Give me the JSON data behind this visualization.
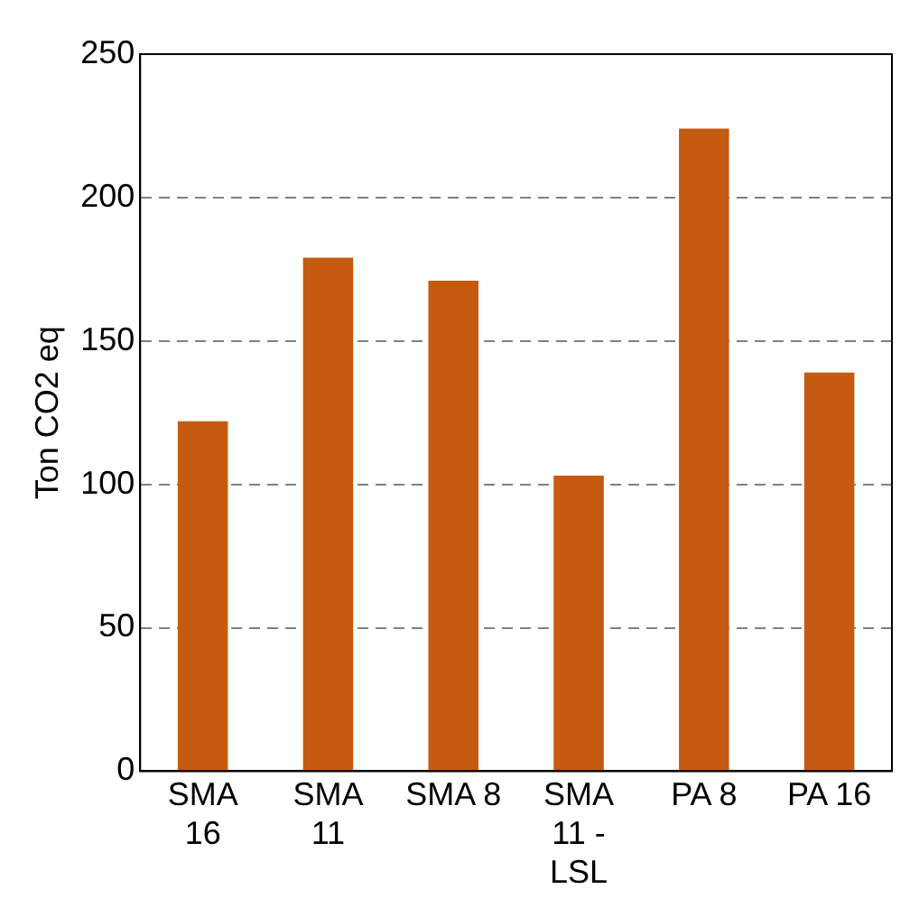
{
  "chart_data": {
    "type": "bar",
    "ylabel": "Ton CO2 eq",
    "categories": [
      "SMA 16",
      "SMA 11",
      "SMA 8",
      "SMA 11 - LSL",
      "PA 8",
      "PA 16"
    ],
    "values": [
      122,
      179,
      171,
      103,
      224,
      139
    ],
    "color": "#c55a11",
    "ylim": [
      0,
      250
    ],
    "yticks": [
      0,
      50,
      100,
      150,
      200,
      250
    ],
    "grid": "y",
    "legend": false
  }
}
